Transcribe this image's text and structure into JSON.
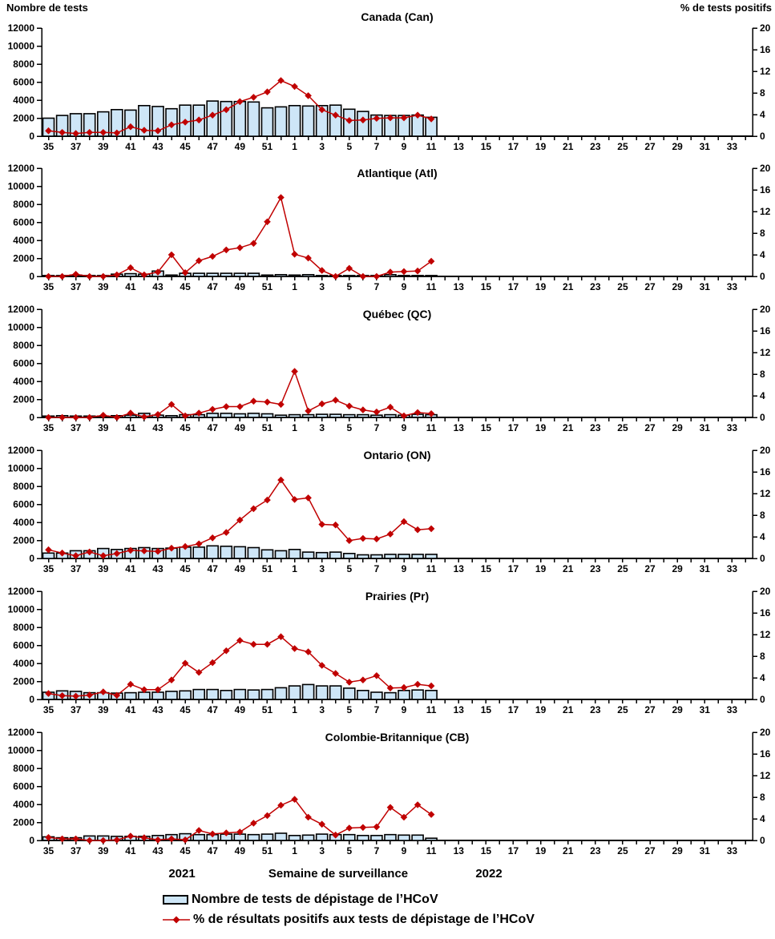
{
  "header": {
    "left_axis_title": "Nombre de tests",
    "right_axis_title": "% de tests positifs"
  },
  "footer": {
    "year_left": "2021",
    "x_axis_title": "Semaine de surveillance",
    "year_right": "2022",
    "legend": [
      {
        "swatch": "bar",
        "label": "Nombre de tests de dépistage de l’HCoV"
      },
      {
        "swatch": "line",
        "label": "% de résultats positifs aux tests de dépistage de l’HCoV"
      }
    ]
  },
  "colors": {
    "bar_fill": "#CEE6F7",
    "bar_stroke": "#000000",
    "line": "#C00000",
    "text": "#000000"
  },
  "chart_data": [
    {
      "type": "bar+line",
      "title": "Canada (Can)",
      "x_label": "Semaine de surveillance",
      "weeks": [
        35,
        36,
        37,
        38,
        39,
        40,
        41,
        42,
        43,
        44,
        45,
        46,
        47,
        48,
        49,
        50,
        51,
        52,
        1,
        2,
        3,
        4,
        5,
        6,
        7,
        8,
        9,
        10,
        11,
        12,
        13,
        14,
        15,
        16,
        17,
        18,
        19,
        20,
        21,
        22,
        23,
        24,
        25,
        26,
        27,
        28,
        29,
        30,
        31,
        32,
        33,
        34
      ],
      "y_left": {
        "label": "Nombre de tests",
        "min": 0,
        "max": 12000,
        "step": 2000
      },
      "y_right": {
        "label": "% de tests positifs",
        "min": 0,
        "max": 20,
        "step": 4
      },
      "series": [
        {
          "name": "Nombre de tests de dépistage de l’HCoV",
          "axis": "left",
          "values": [
            2000,
            2300,
            2500,
            2500,
            2700,
            2950,
            2900,
            3400,
            3300,
            3050,
            3450,
            3450,
            3900,
            3850,
            3850,
            3800,
            3150,
            3250,
            3400,
            3350,
            3400,
            3450,
            3000,
            2750,
            2350,
            2300,
            2300,
            2350,
            2100
          ]
        },
        {
          "name": "% de résultats positifs aux tests de dépistage de l’HCoV",
          "axis": "right",
          "values": [
            1.0,
            0.7,
            0.5,
            0.7,
            0.7,
            0.6,
            1.75,
            1.1,
            1.0,
            2.1,
            2.6,
            3.0,
            3.9,
            4.9,
            6.4,
            7.2,
            8.2,
            10.3,
            9.2,
            7.5,
            4.9,
            3.9,
            2.9,
            3.0,
            3.3,
            3.4,
            3.4,
            3.9,
            3.2
          ]
        }
      ]
    },
    {
      "type": "bar+line",
      "title": "Atlantique (Atl)",
      "x_label": "Semaine de surveillance",
      "weeks": [
        35,
        36,
        37,
        38,
        39,
        40,
        41,
        42,
        43,
        44,
        45,
        46,
        47,
        48,
        49,
        50,
        51,
        52,
        1,
        2,
        3,
        4,
        5,
        6,
        7,
        8,
        9,
        10,
        11,
        12,
        13,
        14,
        15,
        16,
        17,
        18,
        19,
        20,
        21,
        22,
        23,
        24,
        25,
        26,
        27,
        28,
        29,
        30,
        31,
        32,
        33,
        34
      ],
      "y_left": {
        "label": "Nombre de tests",
        "min": 0,
        "max": 12000,
        "step": 2000
      },
      "y_right": {
        "label": "% de tests positifs",
        "min": 0,
        "max": 20,
        "step": 4
      },
      "series": [
        {
          "name": "Nombre de tests de dépistage de l’HCoV",
          "axis": "left",
          "values": [
            100,
            100,
            150,
            100,
            100,
            250,
            300,
            250,
            600,
            150,
            350,
            350,
            350,
            350,
            350,
            350,
            150,
            200,
            150,
            200,
            100,
            100,
            100,
            100,
            100,
            200,
            100,
            100,
            100
          ]
        },
        {
          "name": "% de résultats positifs aux tests de dépistage de l’HCoV",
          "axis": "right",
          "values": [
            0,
            0,
            0.4,
            0,
            0,
            0.3,
            1.6,
            0.3,
            0.8,
            4.0,
            0.7,
            2.9,
            3.7,
            4.9,
            5.3,
            6.1,
            10.1,
            14.6,
            4.1,
            3.4,
            1.1,
            0,
            1.5,
            0,
            0,
            0.8,
            0.9,
            1.0,
            2.8
          ]
        }
      ]
    },
    {
      "type": "bar+line",
      "title": "Québec (QC)",
      "x_label": "Semaine de surveillance",
      "weeks": [
        35,
        36,
        37,
        38,
        39,
        40,
        41,
        42,
        43,
        44,
        45,
        46,
        47,
        48,
        49,
        50,
        51,
        52,
        1,
        2,
        3,
        4,
        5,
        6,
        7,
        8,
        9,
        10,
        11,
        12,
        13,
        14,
        15,
        16,
        17,
        18,
        19,
        20,
        21,
        22,
        23,
        24,
        25,
        26,
        27,
        28,
        29,
        30,
        31,
        32,
        33,
        34
      ],
      "y_left": {
        "label": "Nombre de tests",
        "min": 0,
        "max": 12000,
        "step": 2000
      },
      "y_right": {
        "label": "% de tests positifs",
        "min": 0,
        "max": 20,
        "step": 4
      },
      "series": [
        {
          "name": "Nombre de tests de dépistage de l’HCoV",
          "axis": "left",
          "values": [
            150,
            200,
            150,
            150,
            150,
            200,
            250,
            450,
            250,
            200,
            300,
            300,
            450,
            450,
            400,
            450,
            400,
            250,
            300,
            300,
            350,
            350,
            300,
            300,
            250,
            300,
            250,
            350,
            300
          ]
        },
        {
          "name": "% de résultats positifs aux tests de dépistage de l’HCoV",
          "axis": "right",
          "values": [
            0,
            0,
            0,
            0,
            0.4,
            0,
            0.8,
            0.1,
            0.55,
            2.4,
            0.3,
            0.8,
            1.5,
            2.0,
            2.0,
            3.0,
            2.85,
            2.4,
            8.5,
            1.2,
            2.5,
            3.2,
            2.1,
            1.4,
            1.0,
            1.9,
            0.3,
            0.9,
            0.7
          ]
        }
      ]
    },
    {
      "type": "bar+line",
      "title": "Ontario (ON)",
      "x_label": "Semaine de surveillance",
      "weeks": [
        35,
        36,
        37,
        38,
        39,
        40,
        41,
        42,
        43,
        44,
        45,
        46,
        47,
        48,
        49,
        50,
        51,
        52,
        1,
        2,
        3,
        4,
        5,
        6,
        7,
        8,
        9,
        10,
        11,
        12,
        13,
        14,
        15,
        16,
        17,
        18,
        19,
        20,
        21,
        22,
        23,
        24,
        25,
        26,
        27,
        28,
        29,
        30,
        31,
        32,
        33,
        34
      ],
      "y_left": {
        "label": "Nombre de tests",
        "min": 0,
        "max": 12000,
        "step": 2000
      },
      "y_right": {
        "label": "% de tests positifs",
        "min": 0,
        "max": 20,
        "step": 4
      },
      "series": [
        {
          "name": "Nombre de tests de dépistage de l’HCoV",
          "axis": "left",
          "values": [
            600,
            600,
            850,
            850,
            1100,
            1000,
            1100,
            1200,
            1100,
            1150,
            1250,
            1250,
            1400,
            1350,
            1300,
            1200,
            950,
            850,
            1000,
            700,
            650,
            700,
            550,
            400,
            400,
            450,
            450,
            450,
            450
          ]
        },
        {
          "name": "% de résultats positifs aux tests de dépistage de l’HCoV",
          "axis": "right",
          "values": [
            1.6,
            1.0,
            0.5,
            1.2,
            0.5,
            0.9,
            1.5,
            1.4,
            1.3,
            1.9,
            2.2,
            2.7,
            3.8,
            4.8,
            7.1,
            9.2,
            10.8,
            14.5,
            10.9,
            11.2,
            6.3,
            6.2,
            3.3,
            3.7,
            3.6,
            4.5,
            6.8,
            5.3,
            5.5
          ]
        }
      ]
    },
    {
      "type": "bar+line",
      "title": "Prairies (Pr)",
      "x_label": "Semaine de surveillance",
      "weeks": [
        35,
        36,
        37,
        38,
        39,
        40,
        41,
        42,
        43,
        44,
        45,
        46,
        47,
        48,
        49,
        50,
        51,
        52,
        1,
        2,
        3,
        4,
        5,
        6,
        7,
        8,
        9,
        10,
        11,
        12,
        13,
        14,
        15,
        16,
        17,
        18,
        19,
        20,
        21,
        22,
        23,
        24,
        25,
        26,
        27,
        28,
        29,
        30,
        31,
        32,
        33,
        34
      ],
      "y_left": {
        "label": "Nombre de tests",
        "min": 0,
        "max": 12000,
        "step": 2000
      },
      "y_right": {
        "label": "% de tests positifs",
        "min": 0,
        "max": 20,
        "step": 4
      },
      "series": [
        {
          "name": "Nombre de tests de dépistage de l’HCoV",
          "axis": "left",
          "values": [
            800,
            950,
            900,
            750,
            750,
            700,
            750,
            800,
            800,
            900,
            950,
            1100,
            1100,
            1000,
            1100,
            1050,
            1100,
            1300,
            1500,
            1650,
            1500,
            1500,
            1250,
            1000,
            800,
            750,
            1000,
            1050,
            1000
          ]
        },
        {
          "name": "% de résultats positifs aux tests de dépistage de l’HCoV",
          "axis": "right",
          "values": [
            1.1,
            0.7,
            0.6,
            0.8,
            1.4,
            0.75,
            2.8,
            1.8,
            1.8,
            3.6,
            6.7,
            5.0,
            6.8,
            9.0,
            10.9,
            10.2,
            10.2,
            11.6,
            9.4,
            8.8,
            6.3,
            4.8,
            3.2,
            3.6,
            4.4,
            2.1,
            2.2,
            2.8,
            2.5
          ]
        }
      ]
    },
    {
      "type": "bar+line",
      "title": "Colombie-Britannique (CB)",
      "x_label": "Semaine de surveillance",
      "weeks": [
        35,
        36,
        37,
        38,
        39,
        40,
        41,
        42,
        43,
        44,
        45,
        46,
        47,
        48,
        49,
        50,
        51,
        52,
        1,
        2,
        3,
        4,
        5,
        6,
        7,
        8,
        9,
        10,
        11,
        12,
        13,
        14,
        15,
        16,
        17,
        18,
        19,
        20,
        21,
        22,
        23,
        24,
        25,
        26,
        27,
        28,
        29,
        30,
        31,
        32,
        33,
        34
      ],
      "y_left": {
        "label": "Nombre de tests",
        "min": 0,
        "max": 12000,
        "step": 2000
      },
      "y_right": {
        "label": "% de tests positifs",
        "min": 0,
        "max": 20,
        "step": 4
      },
      "series": [
        {
          "name": "Nombre de tests de dépistage de l’HCoV",
          "axis": "left",
          "values": [
            400,
            300,
            300,
            500,
            500,
            450,
            450,
            450,
            550,
            650,
            750,
            650,
            650,
            700,
            700,
            650,
            700,
            800,
            550,
            600,
            700,
            650,
            650,
            550,
            550,
            650,
            600,
            600,
            250
          ]
        },
        {
          "name": "% de résultats positifs aux tests de dépistage de l’HCoV",
          "axis": "right",
          "values": [
            0.55,
            0.3,
            0.3,
            0,
            0,
            0.1,
            0.8,
            0.5,
            0.1,
            0.3,
            0.1,
            1.85,
            1.2,
            1.4,
            1.55,
            3.2,
            4.6,
            6.5,
            7.6,
            4.3,
            3.0,
            1.0,
            2.3,
            2.4,
            2.5,
            6.1,
            4.3,
            6.6,
            4.8
          ]
        }
      ]
    }
  ]
}
